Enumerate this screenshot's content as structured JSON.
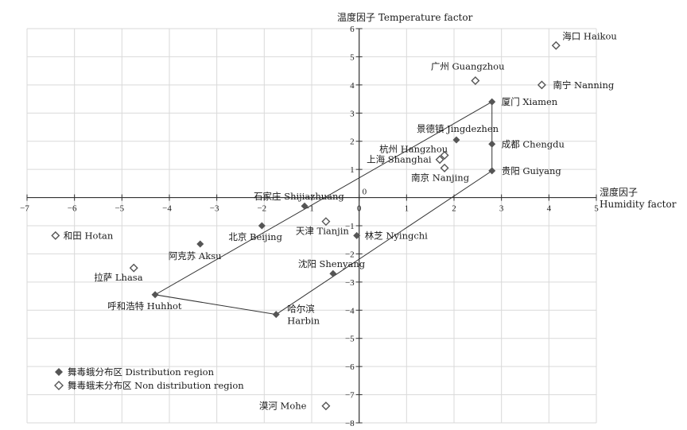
{
  "chart_data": {
    "type": "scatter",
    "xlabel": [
      "湿度因子",
      "Humidity factor"
    ],
    "ylabel": "温度因子 Temperature factor",
    "xlim": [
      -7,
      5
    ],
    "ylim": [
      -8,
      6
    ],
    "xticks": [
      -7,
      -6,
      -5,
      -4,
      -3,
      -2,
      -1,
      0,
      1,
      2,
      3,
      4,
      5
    ],
    "yticks": [
      -8,
      -7,
      -6,
      -5,
      -4,
      -3,
      -2,
      -1,
      0,
      1,
      2,
      3,
      4,
      5,
      6
    ],
    "grid": true,
    "legend_position": "bottom-left",
    "series": [
      {
        "name": "舞毒蛾分布区 Distribution region",
        "marker": "filled-diamond",
        "color": "#555555",
        "points": [
          {
            "label": "厦门 Xiamen",
            "x": 2.8,
            "y": 3.4
          },
          {
            "label": "景德镇 Jingdezhen",
            "x": 2.05,
            "y": 2.05
          },
          {
            "label": "成都 Chengdu",
            "x": 2.8,
            "y": 1.9
          },
          {
            "label": "贵阳 Guiyang",
            "x": 2.8,
            "y": 0.95
          },
          {
            "label": "石家庄 Shijiazhuang",
            "x": -1.15,
            "y": -0.3
          },
          {
            "label": "北京 Beijing",
            "x": -2.05,
            "y": -1.0
          },
          {
            "label": "林芝 Nyingchi",
            "x": -0.05,
            "y": -1.35
          },
          {
            "label": "阿克苏 Aksu",
            "x": -3.35,
            "y": -1.65
          },
          {
            "label": "沈阳 Shenyang",
            "x": -0.55,
            "y": -2.7
          },
          {
            "label": "呼和浩特 Huhhot",
            "x": -4.3,
            "y": -3.45
          },
          {
            "label": "哈尔滨 Harbin",
            "x": -1.75,
            "y": -4.15
          }
        ]
      },
      {
        "name": "舞毒蛾未分布区 Non distribution region",
        "marker": "hollow-diamond",
        "color": "#555555",
        "points": [
          {
            "label": "海口 Haikou",
            "x": 4.15,
            "y": 5.4
          },
          {
            "label": "广州 Guangzhou",
            "x": 2.45,
            "y": 4.15
          },
          {
            "label": "南宁 Nanning",
            "x": 3.85,
            "y": 4.0
          },
          {
            "label": "杭州 Hangzhou",
            "x": 1.8,
            "y": 1.5
          },
          {
            "label": "上海 Shanghai",
            "x": 1.7,
            "y": 1.35
          },
          {
            "label": "南京 Nanjing",
            "x": 1.8,
            "y": 1.05
          },
          {
            "label": "天津 Tianjin",
            "x": -0.7,
            "y": -0.85
          },
          {
            "label": "和田 Hotan",
            "x": -6.4,
            "y": -1.35
          },
          {
            "label": "拉萨 Lhasa",
            "x": -4.75,
            "y": -2.5
          },
          {
            "label": "漠河 Mohe",
            "x": -0.7,
            "y": -7.4
          }
        ]
      }
    ],
    "boundary_polygon": [
      "Xiamen",
      "Guiyang",
      "Harbin",
      "Huhhot",
      "Xiamen"
    ]
  },
  "legend": {
    "distribution": "舞毒蛾分布区 Distribution region",
    "non_distribution": "舞毒蛾未分布区 Non distribution region"
  }
}
